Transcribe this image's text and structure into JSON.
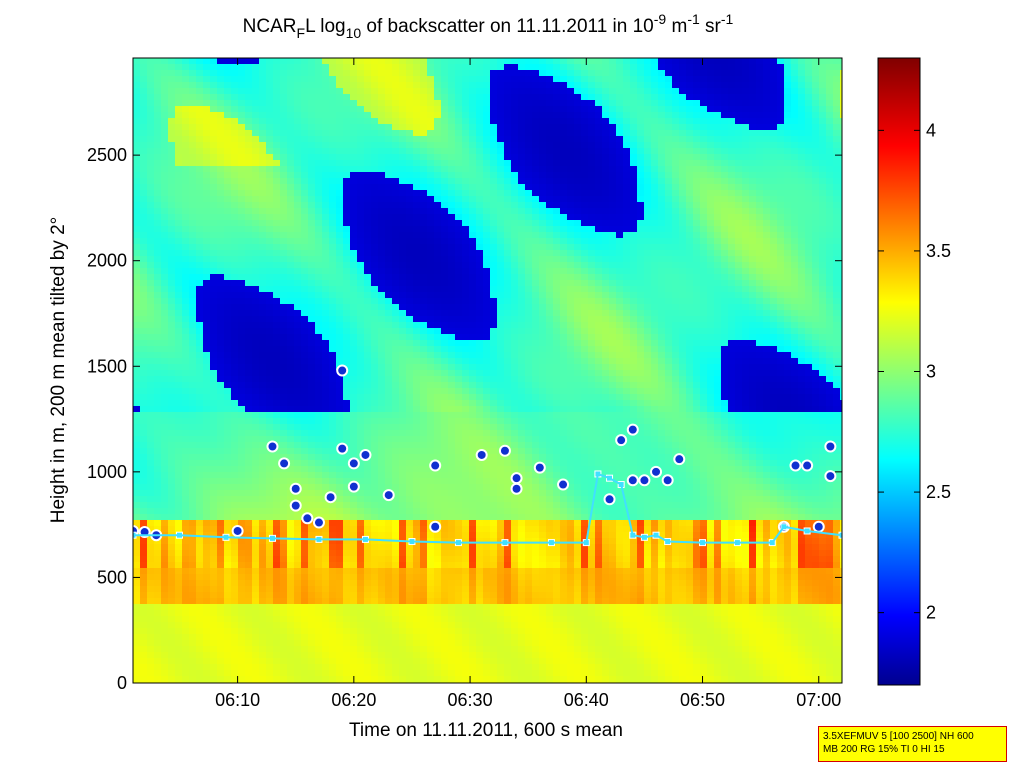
{
  "chart_data": {
    "type": "heatmap",
    "title": "NCAR_FL log_10 of backscatter on 11.11.2011 in 10^-9 m^-1 sr^-1",
    "title_parts": {
      "a": "NCAR",
      "a_sub": "F",
      "b": "L log",
      "b_sub": "10",
      "c": " of backscatter on 11.11.2011 in 10",
      "c_sup": "-9",
      "d": " m",
      "d_sup": "-1",
      "e": " sr",
      "e_sup": "-1"
    },
    "xlabel": "Time on 11.11.2011, 600 s mean",
    "ylabel": "Height in m, 200 m mean tilted by 2°",
    "xlim": [
      "06:01",
      "07:02"
    ],
    "ylim": [
      0,
      2960
    ],
    "x_ticks": [
      "06:10",
      "06:20",
      "06:30",
      "06:40",
      "06:50",
      "07:00"
    ],
    "y_ticks": [
      0,
      500,
      1000,
      1500,
      2000,
      2500
    ],
    "colorbar": {
      "label_ticks": [
        "2",
        "2.5",
        "3",
        "3.5",
        "4"
      ],
      "range": [
        1.7,
        4.3
      ],
      "colormap": "jet"
    },
    "colors": {
      "cloud_base_marker_fill": "#1030d0",
      "cloud_base_marker_edge": "#ff40ff",
      "boundary_layer_marker": "#40e0ff"
    },
    "series": [
      {
        "marker": "circle",
        "x": [
          "06:01",
          "06:02",
          "06:03",
          "06:10",
          "06:13",
          "06:14",
          "06:15",
          "06:15",
          "06:16",
          "06:17",
          "06:18",
          "06:19",
          "06:19",
          "06:20",
          "06:20",
          "06:21",
          "06:23",
          "06:27",
          "06:27",
          "06:31",
          "06:33",
          "06:34",
          "06:34",
          "06:36",
          "06:38",
          "06:42",
          "06:43",
          "06:44",
          "06:44",
          "06:45",
          "06:46",
          "06:47",
          "06:48",
          "06:57",
          "06:58",
          "06:59",
          "07:00",
          "07:01",
          "07:01"
        ],
        "y": [
          720,
          715,
          700,
          720,
          1120,
          1040,
          920,
          840,
          780,
          760,
          880,
          1480,
          1110,
          1040,
          930,
          1080,
          890,
          1030,
          740,
          1080,
          1100,
          970,
          920,
          1020,
          940,
          870,
          1150,
          1200,
          960,
          960,
          1000,
          960,
          1060,
          740,
          1030,
          1030,
          740,
          980,
          1120
        ]
      },
      {
        "marker": "square",
        "x": [
          "06:01",
          "06:05",
          "06:09",
          "06:13",
          "06:17",
          "06:21",
          "06:25",
          "06:29",
          "06:33",
          "06:37",
          "06:40",
          "06:41",
          "06:42",
          "06:43",
          "06:44",
          "06:45",
          "06:46",
          "06:47",
          "06:50",
          "06:53",
          "06:56",
          "06:57",
          "06:59",
          "07:02"
        ],
        "y": [
          700,
          700,
          690,
          685,
          680,
          680,
          670,
          665,
          665,
          665,
          665,
          990,
          970,
          940,
          700,
          690,
          700,
          670,
          665,
          665,
          665,
          740,
          720,
          700
        ]
      }
    ]
  },
  "info_box": {
    "line1": "3.5XEFMUV 5 [100 2500] NH 600",
    "line2": "MB 200 RG 15% TI 0 HI 15"
  }
}
